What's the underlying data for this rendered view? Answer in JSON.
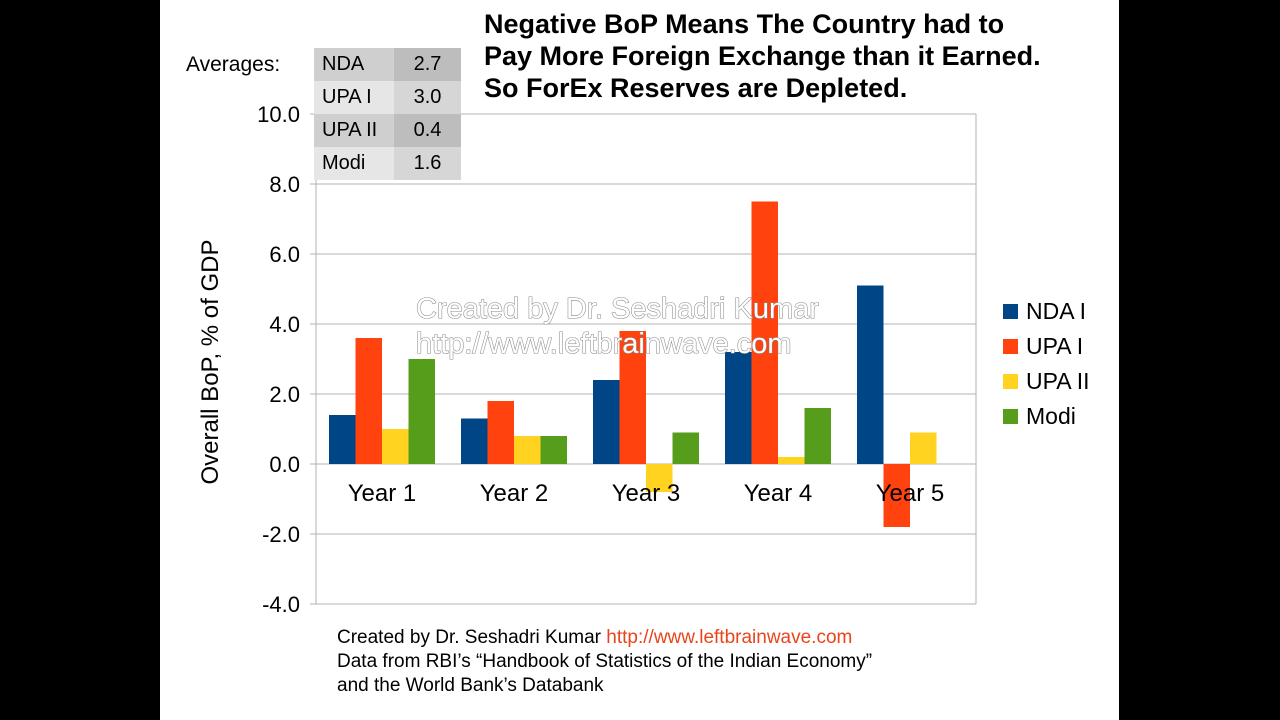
{
  "title_lines": [
    "Negative BoP Means The Country had to",
    "Pay More Foreign Exchange than it Earned.",
    "So ForEx Reserves are Depleted."
  ],
  "averages": {
    "label": "Averages:",
    "rows": [
      {
        "name": "NDA",
        "value": "2.7"
      },
      {
        "name": "UPA I",
        "value": "3.0"
      },
      {
        "name": "UPA II",
        "value": "0.4"
      },
      {
        "name": "Modi",
        "value": "1.6"
      }
    ]
  },
  "watermark": {
    "line1": "Created by Dr. Seshadri Kumar",
    "line2": "http://www.leftbrainwave.com"
  },
  "footer": {
    "line1_text": "Created by Dr. Seshadri Kumar",
    "line1_link": "http://www.leftbrainwave.com",
    "line2": "Data from RBI’s “Handbook of Statistics of the Indian Economy”",
    "line3": "and the World Bank’s Databank"
  },
  "colors": {
    "nda": "#004586",
    "upa1": "#ff420e",
    "upa2": "#ffd320",
    "modi": "#579d1c",
    "grid": "#b3b3b3"
  },
  "chart_data": {
    "type": "bar",
    "ylabel": "Overall BoP, % of GDP",
    "ylim": [
      -4.0,
      10.0
    ],
    "yticks": [
      "10.0",
      "8.0",
      "6.0",
      "4.0",
      "2.0",
      "0.0",
      "-2.0",
      "-4.0"
    ],
    "categories": [
      "Year 1",
      "Year 2",
      "Year 3",
      "Year 4",
      "Year 5"
    ],
    "legend_position": "right",
    "grid": true,
    "series": [
      {
        "name": "NDA I",
        "color": "#004586",
        "values": [
          1.4,
          1.3,
          2.4,
          3.2,
          5.1
        ]
      },
      {
        "name": "UPA I",
        "color": "#ff420e",
        "values": [
          3.6,
          1.8,
          3.8,
          7.5,
          -1.8
        ]
      },
      {
        "name": "UPA II",
        "color": "#ffd320",
        "values": [
          1.0,
          0.8,
          -0.8,
          0.2,
          0.9
        ]
      },
      {
        "name": "Modi",
        "color": "#579d1c",
        "values": [
          3.0,
          0.8,
          0.9,
          1.6,
          null
        ]
      }
    ]
  }
}
